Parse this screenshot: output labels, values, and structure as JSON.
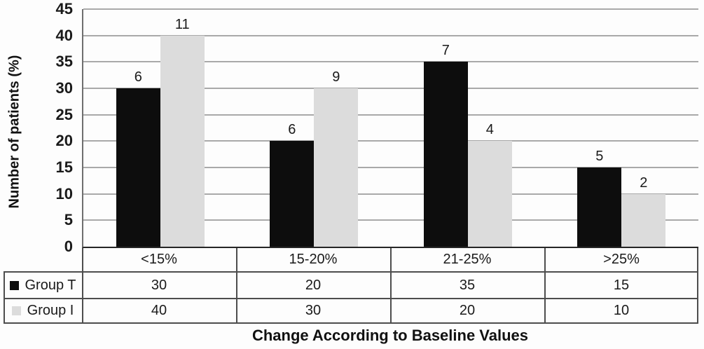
{
  "chart_data": {
    "type": "bar",
    "categories": [
      "<15%",
      "15-20%",
      "21-25%",
      ">25%"
    ],
    "series": [
      {
        "name": "Group T",
        "color": "#0d0d0d",
        "values": [
          30,
          20,
          35,
          15
        ],
        "bar_labels": [
          "6",
          "6",
          "7",
          "5"
        ]
      },
      {
        "name": "Group I",
        "color": "#dcdcdc",
        "values": [
          40,
          30,
          20,
          10
        ],
        "bar_labels": [
          "11",
          "9",
          "4",
          "2"
        ]
      }
    ],
    "title": "",
    "xlabel": "Change According to Baseline Values",
    "ylabel": "Number of patients (%)",
    "ylim": [
      0,
      45
    ],
    "ytick_step": 5,
    "yticks": [
      0,
      5,
      10,
      15,
      20,
      25,
      30,
      35,
      40,
      45
    ],
    "grid": true,
    "gridline_color": "#a9a9a9",
    "axis_color": "#262626",
    "table_border_color": "#4d4d4d",
    "legend_position": "table-left",
    "data_table_rows": [
      {
        "name": "Group T",
        "values": [
          "30",
          "20",
          "35",
          "15"
        ]
      },
      {
        "name": "Group I",
        "values": [
          "40",
          "30",
          "20",
          "10"
        ]
      }
    ]
  }
}
